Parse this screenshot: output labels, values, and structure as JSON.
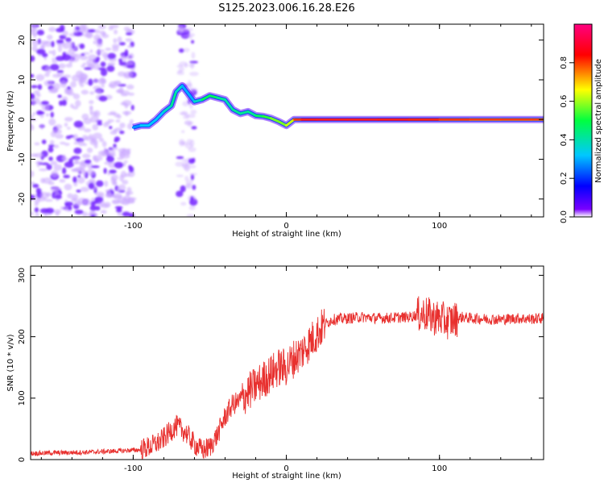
{
  "title": "S125.2023.006.16.28.E26",
  "colors": {
    "snr_line": "#e8302e",
    "trace": "#e23a2c",
    "blob_cold": "#7a2cff",
    "blob_faint": "#c9a5ff"
  },
  "chart_data": [
    {
      "type": "heatmap",
      "xlabel": "Height of straight line (km)",
      "ylabel": "Frequency (Hz)",
      "xlim": [
        -167,
        168
      ],
      "ylim": [
        -24.5,
        24
      ],
      "x_ticks": [
        {
          "value": -100,
          "label": "-100"
        },
        {
          "value": 0,
          "label": "0"
        },
        {
          "value": 100,
          "label": "100"
        }
      ],
      "y_ticks": [
        {
          "value": -20,
          "label": "-20"
        },
        {
          "value": -10,
          "label": "-10"
        },
        {
          "value": 0,
          "label": "0"
        },
        {
          "value": 10,
          "label": "10"
        },
        {
          "value": 20,
          "label": "20"
        }
      ],
      "colorbar": {
        "label": "Normalized spectral amplitude",
        "range": [
          0,
          1
        ],
        "ticks": [
          {
            "value": 0,
            "label": "0.0"
          },
          {
            "value": 0.2,
            "label": "0.2"
          },
          {
            "value": 0.4,
            "label": "0.4"
          },
          {
            "value": 0.6,
            "label": "0.6"
          },
          {
            "value": 0.8,
            "label": "0.8"
          }
        ],
        "stops": [
          "#ffffff",
          "#7a00ff",
          "#0000ff",
          "#00c8ff",
          "#00ff40",
          "#ffff00",
          "#ff0000",
          "#ff0080"
        ]
      },
      "ridge": [
        {
          "x": -100,
          "y": -2,
          "amp": 0.25
        },
        {
          "x": -95,
          "y": -1.5,
          "amp": 0.3
        },
        {
          "x": -90,
          "y": -1.5,
          "amp": 0.35
        },
        {
          "x": -85,
          "y": 0,
          "amp": 0.3
        },
        {
          "x": -80,
          "y": 2,
          "amp": 0.35
        },
        {
          "x": -75,
          "y": 3.5,
          "amp": 0.4
        },
        {
          "x": -72,
          "y": 7,
          "amp": 0.45
        },
        {
          "x": -68,
          "y": 8.5,
          "amp": 0.3
        },
        {
          "x": -60,
          "y": 4.5,
          "amp": 0.3
        },
        {
          "x": -55,
          "y": 5,
          "amp": 0.45
        },
        {
          "x": -50,
          "y": 6,
          "amp": 0.5
        },
        {
          "x": -45,
          "y": 5.5,
          "amp": 0.45
        },
        {
          "x": -40,
          "y": 5,
          "amp": 0.4
        },
        {
          "x": -35,
          "y": 2.5,
          "amp": 0.4
        },
        {
          "x": -30,
          "y": 1.5,
          "amp": 0.45
        },
        {
          "x": -25,
          "y": 2,
          "amp": 0.4
        },
        {
          "x": -20,
          "y": 1,
          "amp": 0.45
        },
        {
          "x": -15,
          "y": 0.8,
          "amp": 0.5
        },
        {
          "x": -10,
          "y": 0.3,
          "amp": 0.55
        },
        {
          "x": -5,
          "y": -0.5,
          "amp": 0.6
        },
        {
          "x": 0,
          "y": -1.5,
          "amp": 0.55
        },
        {
          "x": 5,
          "y": 0,
          "amp": 0.7
        },
        {
          "x": 10,
          "y": 0,
          "amp": 0.85
        },
        {
          "x": 20,
          "y": 0,
          "amp": 0.9
        },
        {
          "x": 40,
          "y": 0,
          "amp": 0.9
        },
        {
          "x": 60,
          "y": 0,
          "amp": 0.9
        },
        {
          "x": 80,
          "y": 0,
          "amp": 0.85
        },
        {
          "x": 100,
          "y": 0,
          "amp": 0.8
        },
        {
          "x": 120,
          "y": 0,
          "amp": 0.75
        },
        {
          "x": 140,
          "y": 0,
          "amp": 0.75
        },
        {
          "x": 160,
          "y": 0,
          "amp": 0.75
        },
        {
          "x": 168,
          "y": 0,
          "amp": 0.75
        }
      ],
      "noise_regions": [
        {
          "x": [
            -167,
            -100
          ],
          "y": [
            -24.5,
            24
          ],
          "density": "high"
        },
        {
          "x": [
            -70,
            -60
          ],
          "y": [
            -24.5,
            24
          ],
          "density": "low"
        }
      ]
    },
    {
      "type": "line",
      "xlabel": "Height of straight line (km)",
      "ylabel": "SNR (10 * v/v)",
      "xlim": [
        -167,
        168
      ],
      "ylim": [
        0,
        315
      ],
      "x_ticks": [
        {
          "value": -100,
          "label": "-100"
        },
        {
          "value": 0,
          "label": "0"
        },
        {
          "value": 100,
          "label": "100"
        }
      ],
      "y_ticks": [
        {
          "value": 0,
          "label": "0"
        },
        {
          "value": 100,
          "label": "100"
        },
        {
          "value": 200,
          "label": "200"
        },
        {
          "value": 300,
          "label": "300"
        }
      ],
      "series": [
        {
          "x": [
            -167,
            -150,
            -130,
            -110,
            -95,
            -88,
            -82,
            -78,
            -72,
            -66,
            -60,
            -55,
            -50,
            -45,
            -40,
            -35,
            -30,
            -25,
            -20,
            -15,
            -10,
            -5,
            0,
            5,
            10,
            15,
            20,
            25,
            30,
            40,
            50,
            60,
            70,
            80,
            85,
            90,
            95,
            100,
            105,
            110,
            115,
            120,
            130,
            140,
            150,
            160,
            168
          ],
          "y": [
            10,
            11,
            12,
            14,
            16,
            22,
            30,
            40,
            55,
            45,
            25,
            15,
            20,
            40,
            70,
            90,
            95,
            110,
            120,
            130,
            140,
            150,
            150,
            165,
            175,
            190,
            205,
            220,
            228,
            230,
            232,
            230,
            231,
            232,
            235,
            238,
            232,
            230,
            225,
            228,
            232,
            230,
            229,
            228,
            230,
            229,
            230
          ]
        }
      ]
    }
  ]
}
